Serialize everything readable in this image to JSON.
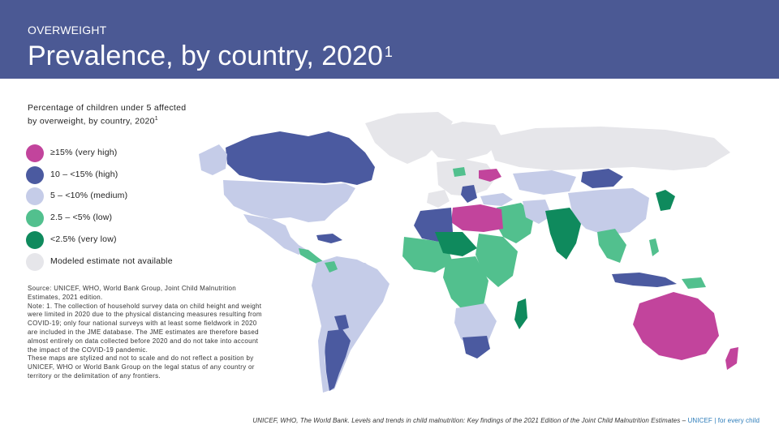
{
  "header": {
    "kicker": "OVERWEIGHT",
    "title": "Prevalence, by country, 2020",
    "title_superscript": "1"
  },
  "intro": {
    "text": "Percentage of children under 5 affected by overweight, by country, 2020",
    "superscript": "1"
  },
  "legend": [
    {
      "label": "≥15% (very high)",
      "color": "#c2449c"
    },
    {
      "label": "10 – <15% (high)",
      "color": "#4b5aa0"
    },
    {
      "label": "5 – <10% (medium)",
      "color": "#c5cce8"
    },
    {
      "label": "2.5 – <5% (low)",
      "color": "#52c08e"
    },
    {
      "label": "<2.5% (very low)",
      "color": "#0f8a5d"
    },
    {
      "label": "Modeled estimate not available",
      "color": "#e6e6ea"
    }
  ],
  "source": "Source: UNICEF, WHO, World Bank Group, Joint Child Malnutrition Estimates, 2021 edition.\nNote: 1. The collection of household survey data on child height and weight were limited in 2020 due to the physical distancing measures resulting from COVID-19; only four national surveys with at least some fieldwork in 2020 are included in the JME database. The JME estimates are therefore based almost entirely on data collected before 2020 and do not take into account the impact of the COVID-19 pandemic.\nThese maps are stylized and not to scale and do not reflect a position by UNICEF, WHO or World Bank Group on the legal status of any country or territory or the delimitation of any frontiers.",
  "footer": {
    "citation": "UNICEF, WHO, The World Bank. Levels and trends in child malnutrition: Key findings of the 2021 Edition of the Joint Child Malnutrition Estimates –",
    "brand": "UNICEF | for every child"
  },
  "colors": {
    "header_bg": "#4b5994",
    "very_high": "#c2449c",
    "high": "#4b5aa0",
    "medium": "#c5cce8",
    "low": "#52c08e",
    "very_low": "#0f8a5d",
    "na": "#e6e6ea"
  }
}
